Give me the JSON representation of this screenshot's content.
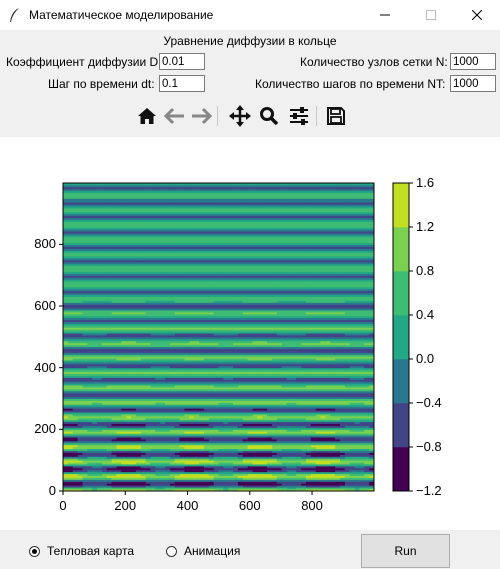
{
  "window": {
    "title": "Математическое моделирование",
    "minimize_icon": "minimize-icon",
    "maximize_icon": "maximize-icon",
    "close_icon": "close-icon",
    "app_icon": "feather-icon"
  },
  "form": {
    "heading": "Уравнение диффузии в кольце",
    "diffusion_label": "Коэффициент диффузии D:",
    "diffusion_value": "0.01",
    "dt_label": "Шаг по времени dt:",
    "dt_value": "0.1",
    "nodes_label": "Количество узлов сетки N:",
    "nodes_value": "1000",
    "steps_label": "Количество шагов по времени NT:",
    "steps_value": "1000"
  },
  "toolbar": {
    "items": [
      "home-icon",
      "back-arrow-icon",
      "forward-arrow-icon",
      "pan-icon",
      "zoom-icon",
      "configure-subplots-icon",
      "save-icon"
    ]
  },
  "chart_data": {
    "type": "heatmap",
    "title": "",
    "xlabel": "",
    "ylabel": "",
    "x_range": [
      0,
      999
    ],
    "y_range": [
      0,
      999
    ],
    "x_ticks": [
      "0",
      "200",
      "400",
      "600",
      "800"
    ],
    "y_ticks": [
      "0",
      "200",
      "400",
      "600",
      "800"
    ],
    "colorbar": {
      "levels": [
        -1.2,
        -0.8,
        -0.4,
        0.0,
        0.4,
        0.8,
        1.2,
        1.6
      ],
      "tick_labels": [
        "−1.2",
        "−0.8",
        "−0.4",
        "0.0",
        "0.4",
        "0.8",
        "1.2",
        "1.6"
      ],
      "colors": [
        "#440154",
        "#404387",
        "#2a788e",
        "#21a585",
        "#5ec962",
        "#fde725",
        "#d2e21b"
      ]
    },
    "colormap": "viridis",
    "note": "Banded contour field; horizontal stripes in time with spatial blobs near t<200"
  },
  "controls": {
    "heatmap_label": "Тепловая карта",
    "animation_label": "Анимация",
    "selected": "heatmap",
    "run_label": "Run"
  }
}
